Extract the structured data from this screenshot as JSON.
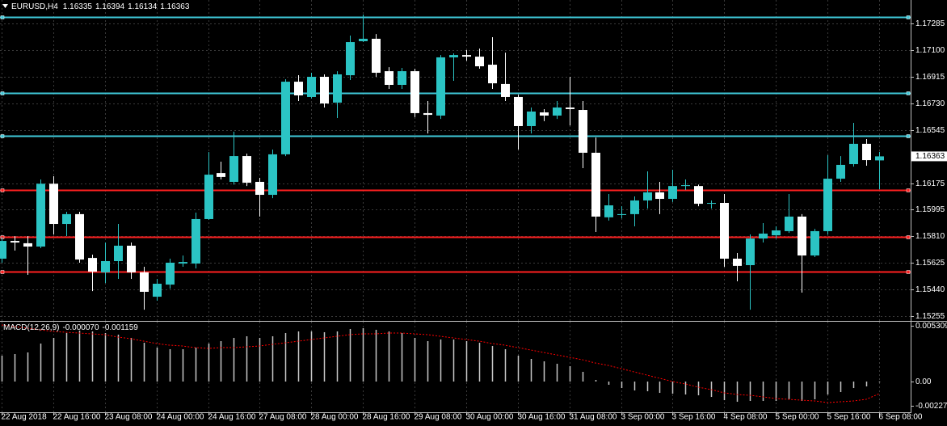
{
  "chart_data": {
    "type": "candlestick",
    "symbol": "EURUSD,H4",
    "categories": [
      "22 Aug 2018",
      null,
      null,
      null,
      "22 Aug 16:00",
      null,
      null,
      null,
      "23 Aug 08:00",
      null,
      null,
      null,
      "24 Aug 00:00",
      null,
      null,
      null,
      "24 Aug 16:00",
      null,
      null,
      null,
      "27 Aug 08:00",
      null,
      null,
      null,
      "28 Aug 00:00",
      null,
      null,
      null,
      "28 Aug 16:00",
      null,
      null,
      null,
      "29 Aug 08:00",
      null,
      null,
      null,
      "30 Aug 00:00",
      null,
      null,
      null,
      "30 Aug 16:00",
      null,
      null,
      null,
      "31 Aug 08:00",
      null,
      null,
      null,
      "3 Sep 00:00",
      null,
      null,
      null,
      "3 Sep 16:00",
      null,
      null,
      null,
      "4 Sep 08:00",
      null,
      null,
      null,
      "5 Sep 00:00",
      null,
      null,
      null,
      "5 Sep 16:00",
      null,
      null,
      null,
      "6 Sep 08:00"
    ],
    "open": [
      1.15653,
      1.15776,
      1.1576,
      1.15737,
      1.16173,
      1.15894,
      1.15962,
      1.15658,
      1.15558,
      1.15636,
      1.15743,
      1.15558,
      1.15389,
      1.15473,
      1.15619,
      1.15619,
      1.15928,
      1.16247,
      1.16186,
      1.16365,
      1.16186,
      1.16096,
      1.16377,
      1.16881,
      1.16775,
      1.16915,
      1.16736,
      1.16926,
      1.17162,
      1.17179,
      1.16954,
      1.16859,
      1.16954,
      1.16663,
      1.16646,
      1.1705,
      1.17066,
      1.17055,
      1.16999,
      1.16865,
      1.16775,
      1.16573,
      1.16668,
      1.16646,
      1.16702,
      1.16685,
      1.16388,
      1.1594,
      1.15956,
      1.15962,
      1.16057,
      1.16113,
      1.16068,
      1.16157,
      1.16157,
      1.16034,
      1.1604,
      1.15653,
      1.15608,
      1.15793,
      1.15815,
      1.15844,
      1.15945,
      1.15675,
      1.15844,
      1.16208,
      1.16309,
      1.1645,
      1.16335
    ],
    "high": [
      1.15804,
      1.1581,
      1.1581,
      1.16203,
      1.16225,
      1.15978,
      1.15978,
      1.15681,
      1.15765,
      1.15894,
      1.15765,
      1.15597,
      1.15513,
      1.15653,
      1.15675,
      1.15973,
      1.16393,
      1.16326,
      1.16534,
      1.16382,
      1.16214,
      1.1641,
      1.16898,
      1.16926,
      1.16943,
      1.16932,
      1.16954,
      1.17201,
      1.17347,
      1.17212,
      1.16982,
      1.16977,
      1.16971,
      1.16747,
      1.17066,
      1.17078,
      1.171,
      1.17111,
      1.1719,
      1.17083,
      1.16792,
      1.16702,
      1.16691,
      1.16747,
      1.16915,
      1.16747,
      1.16494,
      1.16102,
      1.16017,
      1.16085,
      1.16259,
      1.16186,
      1.1627,
      1.16203,
      1.16167,
      1.16057,
      1.16102,
      1.15692,
      1.15821,
      1.159,
      1.15877,
      1.16102,
      1.15962,
      1.1586,
      1.16371,
      1.16365,
      1.16595,
      1.16483,
      1.16394
    ],
    "low": [
      1.15625,
      1.15709,
      1.15541,
      1.15726,
      1.15821,
      1.1581,
      1.15625,
      1.15428,
      1.15484,
      1.15513,
      1.15513,
      1.15299,
      1.15361,
      1.15445,
      1.15597,
      1.15585,
      1.15922,
      1.16203,
      1.16167,
      1.16157,
      1.15945,
      1.16073,
      1.16365,
      1.16747,
      1.16764,
      1.16702,
      1.16629,
      1.16893,
      1.17156,
      1.16915,
      1.16831,
      1.16831,
      1.16635,
      1.16522,
      1.16623,
      1.16887,
      1.17027,
      1.16971,
      1.16831,
      1.16747,
      1.1641,
      1.16522,
      1.16607,
      1.16623,
      1.16578,
      1.16281,
      1.15838,
      1.15917,
      1.15933,
      1.15877,
      1.16001,
      1.15962,
      1.16046,
      1.16129,
      1.16017,
      1.16001,
      1.15597,
      1.15496,
      1.15299,
      1.15765,
      1.15793,
      1.15832,
      1.15417,
      1.15664,
      1.15821,
      1.16186,
      1.16292,
      1.16298,
      1.16134
    ],
    "close": [
      1.15776,
      1.15765,
      1.15737,
      1.16173,
      1.15894,
      1.15962,
      1.15647,
      1.15563,
      1.15636,
      1.15743,
      1.15558,
      1.15423,
      1.15479,
      1.15625,
      1.1563,
      1.15928,
      1.16236,
      1.1622,
      1.16365,
      1.1618,
      1.16096,
      1.16377,
      1.16881,
      1.16786,
      1.16915,
      1.1673,
      1.16932,
      1.17156,
      1.17179,
      1.16943,
      1.16859,
      1.16954,
      1.16663,
      1.16651,
      1.1705,
      1.17066,
      1.17055,
      1.16988,
      1.1687,
      1.16775,
      1.16573,
      1.16674,
      1.16646,
      1.16702,
      1.16691,
      1.16388,
      1.15945,
      1.16023,
      1.15962,
      1.16057,
      1.16113,
      1.16068,
      1.16157,
      1.16163,
      1.16034,
      1.1604,
      1.15653,
      1.15603,
      1.15793,
      1.15827,
      1.15849,
      1.15945,
      1.15675,
      1.15844,
      1.16208,
      1.16304,
      1.1645,
      1.16337,
      1.16363
    ],
    "up_color": "#2bc4c4",
    "down_color": "#ffffff",
    "ylim": [
      1.15221,
      1.17448
    ],
    "yticks": [
      1.17285,
      {
        "value": 1.171,
        "label": "1.17100"
      },
      1.16915,
      {
        "value": 1.1673,
        "label": "1.16730"
      },
      1.16545,
      1.16175,
      1.15995,
      {
        "value": 1.1581,
        "label": "1.15810"
      },
      1.15625,
      {
        "value": 1.1544,
        "label": "1.15440"
      },
      1.15255
    ],
    "grid": true,
    "hlines": [
      {
        "value": 1.1733,
        "color": "#3fc8d8"
      },
      {
        "value": 1.16803,
        "color": "#3fc8d8"
      },
      {
        "value": 1.16505,
        "color": "#3fc8d8"
      },
      {
        "value": 1.16129,
        "color": "#ff2020"
      },
      {
        "value": 1.15804,
        "color": "#ff2020"
      },
      {
        "value": 1.15563,
        "color": "#ff2020"
      }
    ],
    "macd": {
      "name": "MACD(12,26,9)",
      "main_label": "-0.000070",
      "signal_label": "-0.001159",
      "main": [
        0.002462,
        0.002615,
        0.002769,
        0.003615,
        0.004154,
        0.004615,
        0.004846,
        0.004769,
        0.004615,
        0.004462,
        0.004154,
        0.003692,
        0.003231,
        0.003077,
        0.003077,
        0.003231,
        0.003615,
        0.003846,
        0.004154,
        0.004308,
        0.004154,
        0.004308,
        0.004615,
        0.004769,
        0.004769,
        0.004692,
        0.004769,
        0.005,
        0.005077,
        0.004923,
        0.004769,
        0.004615,
        0.004154,
        0.003846,
        0.004,
        0.004,
        0.003846,
        0.003692,
        0.003385,
        0.003077,
        0.002462,
        0.002154,
        0.001923,
        0.001692,
        0.001462,
        0.000923,
        0.000154,
        -0.000308,
        -0.000615,
        -0.000846,
        -0.000923,
        -0.001077,
        -0.001154,
        -0.001231,
        -0.001308,
        -0.001462,
        -0.001769,
        -0.001923,
        -0.001846,
        -0.001846,
        -0.001846,
        -0.001692,
        -0.001846,
        -0.001692,
        -0.001231,
        -0.001,
        -0.000615,
        -0.000462,
        -7e-05
      ],
      "signal": [
        0.005385,
        0.005231,
        0.005077,
        0.004923,
        0.004769,
        0.004692,
        0.004615,
        0.004538,
        0.004462,
        0.004231,
        0.004077,
        0.003846,
        0.003615,
        0.003462,
        0.003385,
        0.003231,
        0.003154,
        0.003231,
        0.003231,
        0.003308,
        0.003385,
        0.003538,
        0.003692,
        0.003846,
        0.004,
        0.004154,
        0.004308,
        0.004462,
        0.004538,
        0.004538,
        0.004615,
        0.004615,
        0.004538,
        0.004462,
        0.004308,
        0.004154,
        0.004,
        0.003846,
        0.003615,
        0.003462,
        0.003231,
        0.003,
        0.002769,
        0.002538,
        0.002308,
        0.002077,
        0.001769,
        0.001538,
        0.001231,
        0.000923,
        0.000615,
        0.000308,
        0,
        -0.000231,
        -0.000538,
        -0.000769,
        -0.001077,
        -0.001231,
        -0.001308,
        -0.001462,
        -0.001615,
        -0.001692,
        -0.001769,
        -0.001846,
        -0.002,
        -0.001923,
        -0.001846,
        -0.001692,
        -0.001159
      ],
      "main_color": "#c8c8c8",
      "signal_color": "#ff0000",
      "ylim": [
        -0.00292,
        0.00569
      ],
      "yticks": [
        0.005309,
        {
          "value": 0,
          "label": "0.00"
        },
        -0.002276
      ]
    }
  }
}
